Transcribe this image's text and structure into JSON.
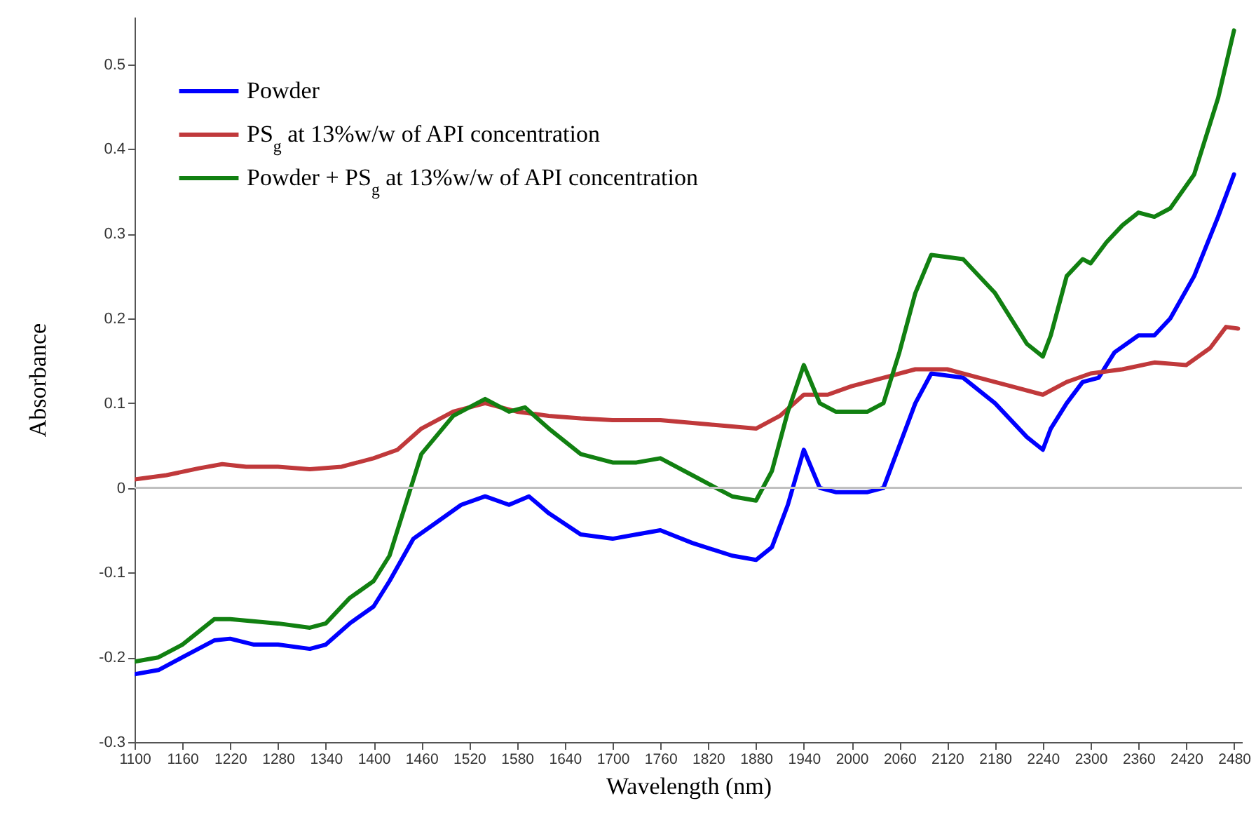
{
  "chart_data": {
    "type": "line",
    "xlabel": "Wavelength (nm)",
    "ylabel": "Absorbance",
    "xlim": [
      1100,
      2490
    ],
    "xticks": [
      1100,
      1160,
      1220,
      1280,
      1340,
      1400,
      1460,
      1520,
      1580,
      1640,
      1700,
      1760,
      1820,
      1880,
      1940,
      2000,
      2060,
      2120,
      2180,
      2240,
      2300,
      2360,
      2420,
      2480
    ],
    "ylim": [
      -0.3,
      0.556
    ],
    "yticks": [
      -0.3,
      -0.2,
      -0.1,
      0,
      0.1,
      0.2,
      0.3,
      0.4,
      0.5
    ],
    "grid": false,
    "legend": "top left",
    "ref_lines": [
      {
        "axis": "y",
        "value": 0,
        "color": "#c0c0c0"
      }
    ],
    "series": [
      {
        "name": "Powder",
        "color": "#0000ff",
        "x": [
          1100,
          1130,
          1160,
          1200,
          1220,
          1250,
          1280,
          1320,
          1340,
          1370,
          1400,
          1420,
          1450,
          1480,
          1510,
          1540,
          1570,
          1595,
          1620,
          1660,
          1700,
          1730,
          1760,
          1800,
          1850,
          1880,
          1900,
          1920,
          1940,
          1960,
          1980,
          2020,
          2040,
          2060,
          2080,
          2100,
          2140,
          2180,
          2220,
          2240,
          2250,
          2270,
          2290,
          2310,
          2330,
          2360,
          2380,
          2400,
          2430,
          2460,
          2480
        ],
        "values": [
          -0.22,
          -0.215,
          -0.2,
          -0.18,
          -0.178,
          -0.185,
          -0.185,
          -0.19,
          -0.185,
          -0.16,
          -0.14,
          -0.11,
          -0.06,
          -0.04,
          -0.02,
          -0.01,
          -0.02,
          -0.01,
          -0.03,
          -0.055,
          -0.06,
          -0.055,
          -0.05,
          -0.065,
          -0.08,
          -0.085,
          -0.07,
          -0.02,
          0.045,
          0.0,
          -0.005,
          -0.005,
          0.0,
          0.05,
          0.1,
          0.135,
          0.13,
          0.1,
          0.06,
          0.045,
          0.07,
          0.1,
          0.125,
          0.13,
          0.16,
          0.18,
          0.18,
          0.2,
          0.25,
          0.32,
          0.37
        ]
      },
      {
        "name": "PS$_{g}$ at 13%w/w of API concentration",
        "color": "#c0393b",
        "x": [
          1100,
          1140,
          1180,
          1210,
          1240,
          1280,
          1320,
          1360,
          1400,
          1430,
          1460,
          1500,
          1540,
          1580,
          1620,
          1660,
          1700,
          1760,
          1820,
          1880,
          1910,
          1940,
          1970,
          2000,
          2040,
          2080,
          2120,
          2160,
          2200,
          2240,
          2270,
          2300,
          2340,
          2380,
          2420,
          2450,
          2470,
          2485
        ],
        "values": [
          0.01,
          0.015,
          0.023,
          0.028,
          0.025,
          0.025,
          0.022,
          0.025,
          0.035,
          0.045,
          0.07,
          0.09,
          0.1,
          0.09,
          0.085,
          0.082,
          0.08,
          0.08,
          0.075,
          0.07,
          0.085,
          0.11,
          0.11,
          0.12,
          0.13,
          0.14,
          0.14,
          0.13,
          0.12,
          0.11,
          0.125,
          0.135,
          0.14,
          0.148,
          0.145,
          0.165,
          0.19,
          0.188
        ]
      },
      {
        "name": "Powder + PS$_{g}$ at 13%w/w of API concentration",
        "color": "#118011",
        "x": [
          1100,
          1130,
          1160,
          1200,
          1220,
          1280,
          1320,
          1340,
          1370,
          1400,
          1420,
          1440,
          1460,
          1500,
          1540,
          1570,
          1590,
          1620,
          1660,
          1700,
          1730,
          1760,
          1800,
          1850,
          1880,
          1900,
          1920,
          1940,
          1960,
          1980,
          2020,
          2040,
          2060,
          2080,
          2100,
          2140,
          2180,
          2220,
          2240,
          2250,
          2270,
          2290,
          2300,
          2320,
          2340,
          2360,
          2380,
          2400,
          2430,
          2460,
          2480
        ],
        "values": [
          -0.205,
          -0.2,
          -0.185,
          -0.155,
          -0.155,
          -0.16,
          -0.165,
          -0.16,
          -0.13,
          -0.11,
          -0.08,
          -0.02,
          0.04,
          0.085,
          0.105,
          0.09,
          0.095,
          0.07,
          0.04,
          0.03,
          0.03,
          0.035,
          0.015,
          -0.01,
          -0.015,
          0.02,
          0.09,
          0.145,
          0.1,
          0.09,
          0.09,
          0.1,
          0.16,
          0.23,
          0.275,
          0.27,
          0.23,
          0.17,
          0.155,
          0.18,
          0.25,
          0.27,
          0.265,
          0.29,
          0.31,
          0.325,
          0.32,
          0.33,
          0.37,
          0.46,
          0.54
        ]
      }
    ]
  }
}
